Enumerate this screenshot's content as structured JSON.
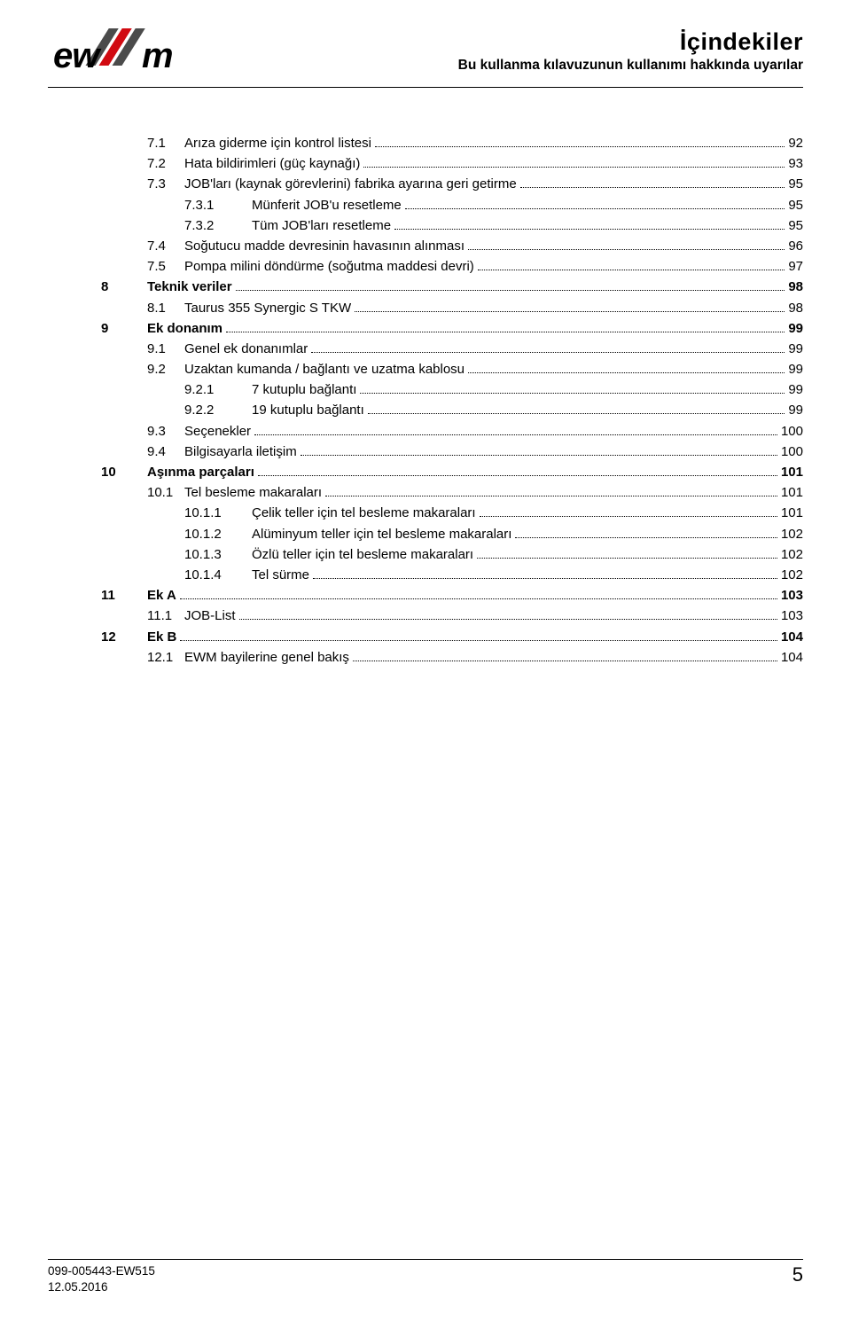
{
  "header": {
    "title": "İçindekiler",
    "subtitle": "Bu kullanma kılavuzunun kullanımı hakkında uyarılar"
  },
  "logo": {
    "text_main": "ew",
    "text_suffix": "m",
    "bar_dark": "#4b4b4b",
    "bar_red": "#d10a11"
  },
  "toc": [
    {
      "lvl": 2,
      "num": "7.1",
      "label": "Arıza giderme için kontrol listesi",
      "page": "92",
      "bold": false
    },
    {
      "lvl": 2,
      "num": "7.2",
      "label": "Hata bildirimleri (güç kaynağı)",
      "page": "93",
      "bold": false
    },
    {
      "lvl": 2,
      "num": "7.3",
      "label": "JOB'ları (kaynak görevlerini) fabrika ayarına geri getirme",
      "page": "95",
      "bold": false
    },
    {
      "lvl": 3,
      "num": "7.3.1",
      "label": "Münferit JOB'u resetleme",
      "page": "95",
      "bold": false
    },
    {
      "lvl": 3,
      "num": "7.3.2",
      "label": "Tüm JOB'ları resetleme",
      "page": "95",
      "bold": false
    },
    {
      "lvl": 2,
      "num": "7.4",
      "label": "Soğutucu madde devresinin havasının alınması",
      "page": "96",
      "bold": false
    },
    {
      "lvl": 2,
      "num": "7.5",
      "label": "Pompa milini döndürme (soğutma maddesi devri)",
      "page": "97",
      "bold": false
    },
    {
      "lvl": 1,
      "num": "8",
      "label": "Teknik veriler",
      "page": "98",
      "bold": true
    },
    {
      "lvl": 2,
      "num": "8.1",
      "label": "Taurus 355 Synergic S TKW",
      "page": "98",
      "bold": false
    },
    {
      "lvl": 1,
      "num": "9",
      "label": "Ek donanım",
      "page": "99",
      "bold": true
    },
    {
      "lvl": 2,
      "num": "9.1",
      "label": "Genel ek donanımlar",
      "page": "99",
      "bold": false
    },
    {
      "lvl": 2,
      "num": "9.2",
      "label": "Uzaktan kumanda / bağlantı ve uzatma kablosu",
      "page": "99",
      "bold": false
    },
    {
      "lvl": 3,
      "num": "9.2.1",
      "label": "7 kutuplu bağlantı",
      "page": "99",
      "bold": false
    },
    {
      "lvl": 3,
      "num": "9.2.2",
      "label": "19 kutuplu bağlantı",
      "page": "99",
      "bold": false
    },
    {
      "lvl": 2,
      "num": "9.3",
      "label": "Seçenekler",
      "page": "100",
      "bold": false
    },
    {
      "lvl": 2,
      "num": "9.4",
      "label": "Bilgisayarla iletişim",
      "page": "100",
      "bold": false
    },
    {
      "lvl": 1,
      "num": "10",
      "label": "Aşınma parçaları",
      "page": "101",
      "bold": true
    },
    {
      "lvl": 2,
      "num": "10.1",
      "label": "Tel besleme makaraları",
      "page": "101",
      "bold": false
    },
    {
      "lvl": 3,
      "num": "10.1.1",
      "label": "Çelik teller için tel besleme makaraları",
      "page": "101",
      "bold": false
    },
    {
      "lvl": 3,
      "num": "10.1.2",
      "label": "Alüminyum teller için tel besleme makaraları",
      "page": "102",
      "bold": false
    },
    {
      "lvl": 3,
      "num": "10.1.3",
      "label": "Özlü teller için tel besleme makaraları",
      "page": "102",
      "bold": false
    },
    {
      "lvl": 3,
      "num": "10.1.4",
      "label": "Tel sürme",
      "page": "102",
      "bold": false
    },
    {
      "lvl": 1,
      "num": "11",
      "label": "Ek A",
      "page": "103",
      "bold": true
    },
    {
      "lvl": 2,
      "num": "11.1",
      "label": "JOB-List",
      "page": "103",
      "bold": false
    },
    {
      "lvl": 1,
      "num": "12",
      "label": "Ek B",
      "page": "104",
      "bold": true
    },
    {
      "lvl": 2,
      "num": "12.1",
      "label": "EWM bayilerine genel bakış",
      "page": "104",
      "bold": false
    }
  ],
  "footer": {
    "code": "099-005443-EW515",
    "date": "12.05.2016",
    "page": "5"
  }
}
